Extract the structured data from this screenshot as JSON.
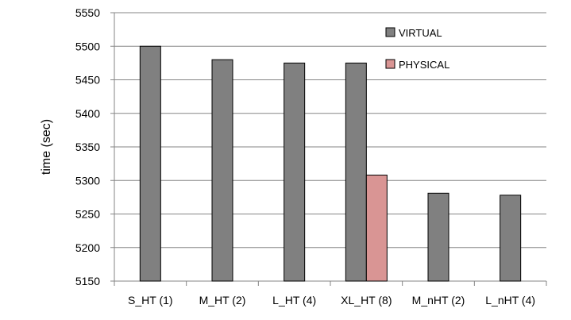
{
  "chart_data": {
    "type": "bar",
    "title": "",
    "xlabel": "",
    "ylabel": "time (sec)",
    "ylim": [
      5150,
      5550
    ],
    "yticks": [
      5150,
      5200,
      5250,
      5300,
      5350,
      5400,
      5450,
      5500,
      5550
    ],
    "grid": true,
    "legend_position": "top-right",
    "categories": [
      "S_HT (1)",
      "M_HT (2)",
      "L_HT (4)",
      "XL_HT (8)",
      "M_nHT (2)",
      "L_nHT (4)"
    ],
    "series": [
      {
        "name": "VIRTUAL",
        "color": "#808080",
        "values": [
          5500,
          5480,
          5475,
          5475,
          5281,
          5278
        ]
      },
      {
        "name": "PHYSICAL",
        "color": "#d99594",
        "values": [
          null,
          null,
          null,
          5308,
          null,
          null
        ]
      }
    ]
  }
}
